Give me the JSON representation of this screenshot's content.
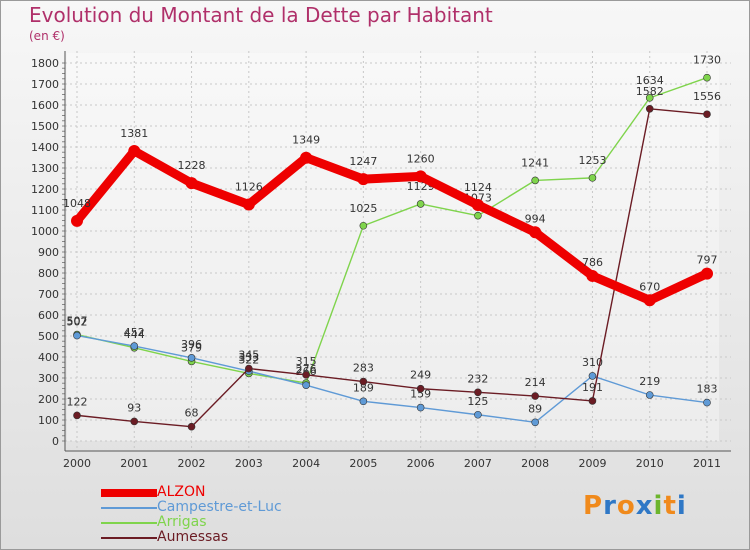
{
  "header": {
    "title": "Evolution du Montant de la Dette par Habitant",
    "unit": "(en €)"
  },
  "brand": {
    "text": "Proxiti",
    "colors": [
      "#f08a1c",
      "#2f78c6",
      "#f08a1c",
      "#2f78c6",
      "#6cb52d",
      "#f08a1c",
      "#2f78c6"
    ]
  },
  "chart_data": {
    "type": "line",
    "categories": [
      "2000",
      "2001",
      "2002",
      "2003",
      "2004",
      "2005",
      "2006",
      "2007",
      "2008",
      "2009",
      "2010",
      "2011"
    ],
    "ylim": [
      0,
      1800
    ],
    "yticks": [
      0,
      100,
      200,
      300,
      400,
      500,
      600,
      700,
      800,
      900,
      1000,
      1100,
      1200,
      1300,
      1400,
      1500,
      1600,
      1700,
      1800
    ],
    "grid": true,
    "legend_position": "bottom-left",
    "series": [
      {
        "name": "ALZON",
        "color": "#ee0000",
        "values": [
          1048,
          1381,
          1228,
          1126,
          1349,
          1247,
          1260,
          1124,
          994,
          786,
          670,
          797
        ]
      },
      {
        "name": "Campestre-et-Luc",
        "color": "#5f9ad6",
        "values": [
          502,
          452,
          396,
          333,
          266,
          189,
          159,
          125,
          89,
          310,
          219,
          183
        ]
      },
      {
        "name": "Arrigas",
        "color": "#7fd44c",
        "values": [
          507,
          444,
          379,
          322,
          276,
          1025,
          1129,
          1073,
          1241,
          1253,
          1634,
          1730
        ]
      },
      {
        "name": "Aumessas",
        "color": "#6b1c24",
        "values": [
          122,
          93,
          68,
          345,
          315,
          283,
          249,
          232,
          214,
          191,
          1582,
          1556
        ]
      }
    ]
  }
}
